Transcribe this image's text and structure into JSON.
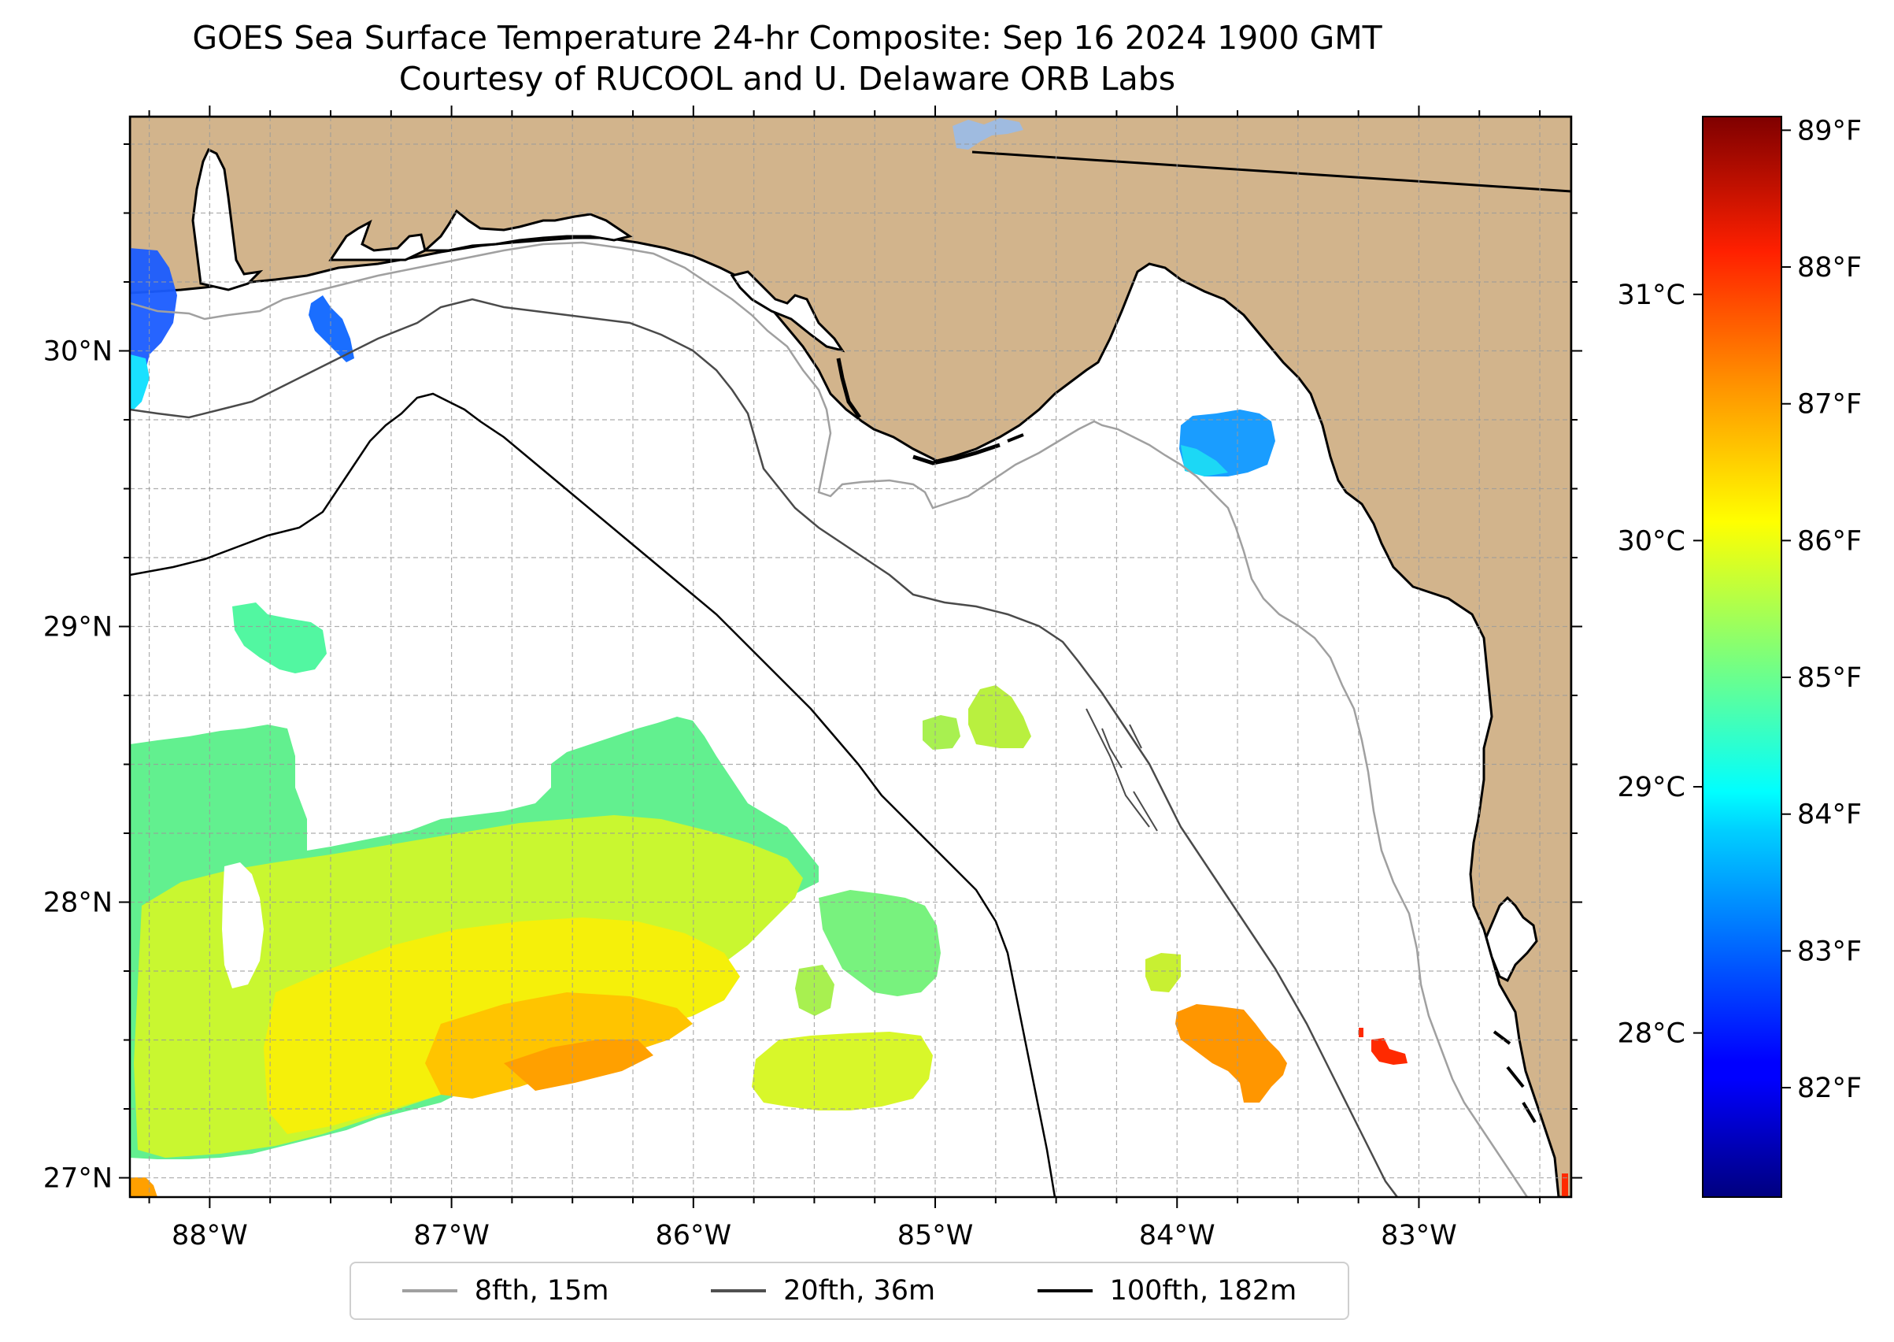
{
  "title": {
    "line1": "GOES Sea Surface Temperature 24-hr Composite: Sep 16 2024 1900 GMT",
    "line2": "Courtesy of RUCOOL and U. Delaware ORB Labs"
  },
  "map": {
    "lon_range": [
      -88.33,
      -82.37
    ],
    "lat_range": [
      26.93,
      30.85
    ],
    "lon_ticks": [
      {
        "value": -88,
        "label": "88°W"
      },
      {
        "value": -87,
        "label": "87°W"
      },
      {
        "value": -86,
        "label": "86°W"
      },
      {
        "value": -85,
        "label": "85°W"
      },
      {
        "value": -84,
        "label": "84°W"
      },
      {
        "value": -83,
        "label": "83°W"
      }
    ],
    "lat_ticks": [
      {
        "value": 30,
        "label": "30°N"
      },
      {
        "value": 29,
        "label": "29°N"
      },
      {
        "value": 28,
        "label": "28°N"
      },
      {
        "value": 27,
        "label": "27°N"
      }
    ],
    "land_color": "#D2B48C",
    "grid": true
  },
  "colorbar": {
    "colormap": "jet",
    "f_ticks": [
      {
        "value": 82,
        "label": "82°F"
      },
      {
        "value": 83,
        "label": "83°F"
      },
      {
        "value": 84,
        "label": "84°F"
      },
      {
        "value": 85,
        "label": "85°F"
      },
      {
        "value": 86,
        "label": "86°F"
      },
      {
        "value": 87,
        "label": "87°F"
      },
      {
        "value": 88,
        "label": "88°F"
      },
      {
        "value": 89,
        "label": "89°F"
      }
    ],
    "c_ticks": [
      {
        "value": 28,
        "label": "28°C"
      },
      {
        "value": 29,
        "label": "29°C"
      },
      {
        "value": 30,
        "label": "30°C"
      },
      {
        "value": 31,
        "label": "31°C"
      }
    ],
    "range_f": [
      81.2,
      89.1
    ]
  },
  "legend": {
    "items": [
      {
        "label": "8fth, 15m",
        "color": "#a0a0a0"
      },
      {
        "label": "20fth, 36m",
        "color": "#505050"
      },
      {
        "label": "100fth, 182m",
        "color": "#000000"
      }
    ]
  }
}
